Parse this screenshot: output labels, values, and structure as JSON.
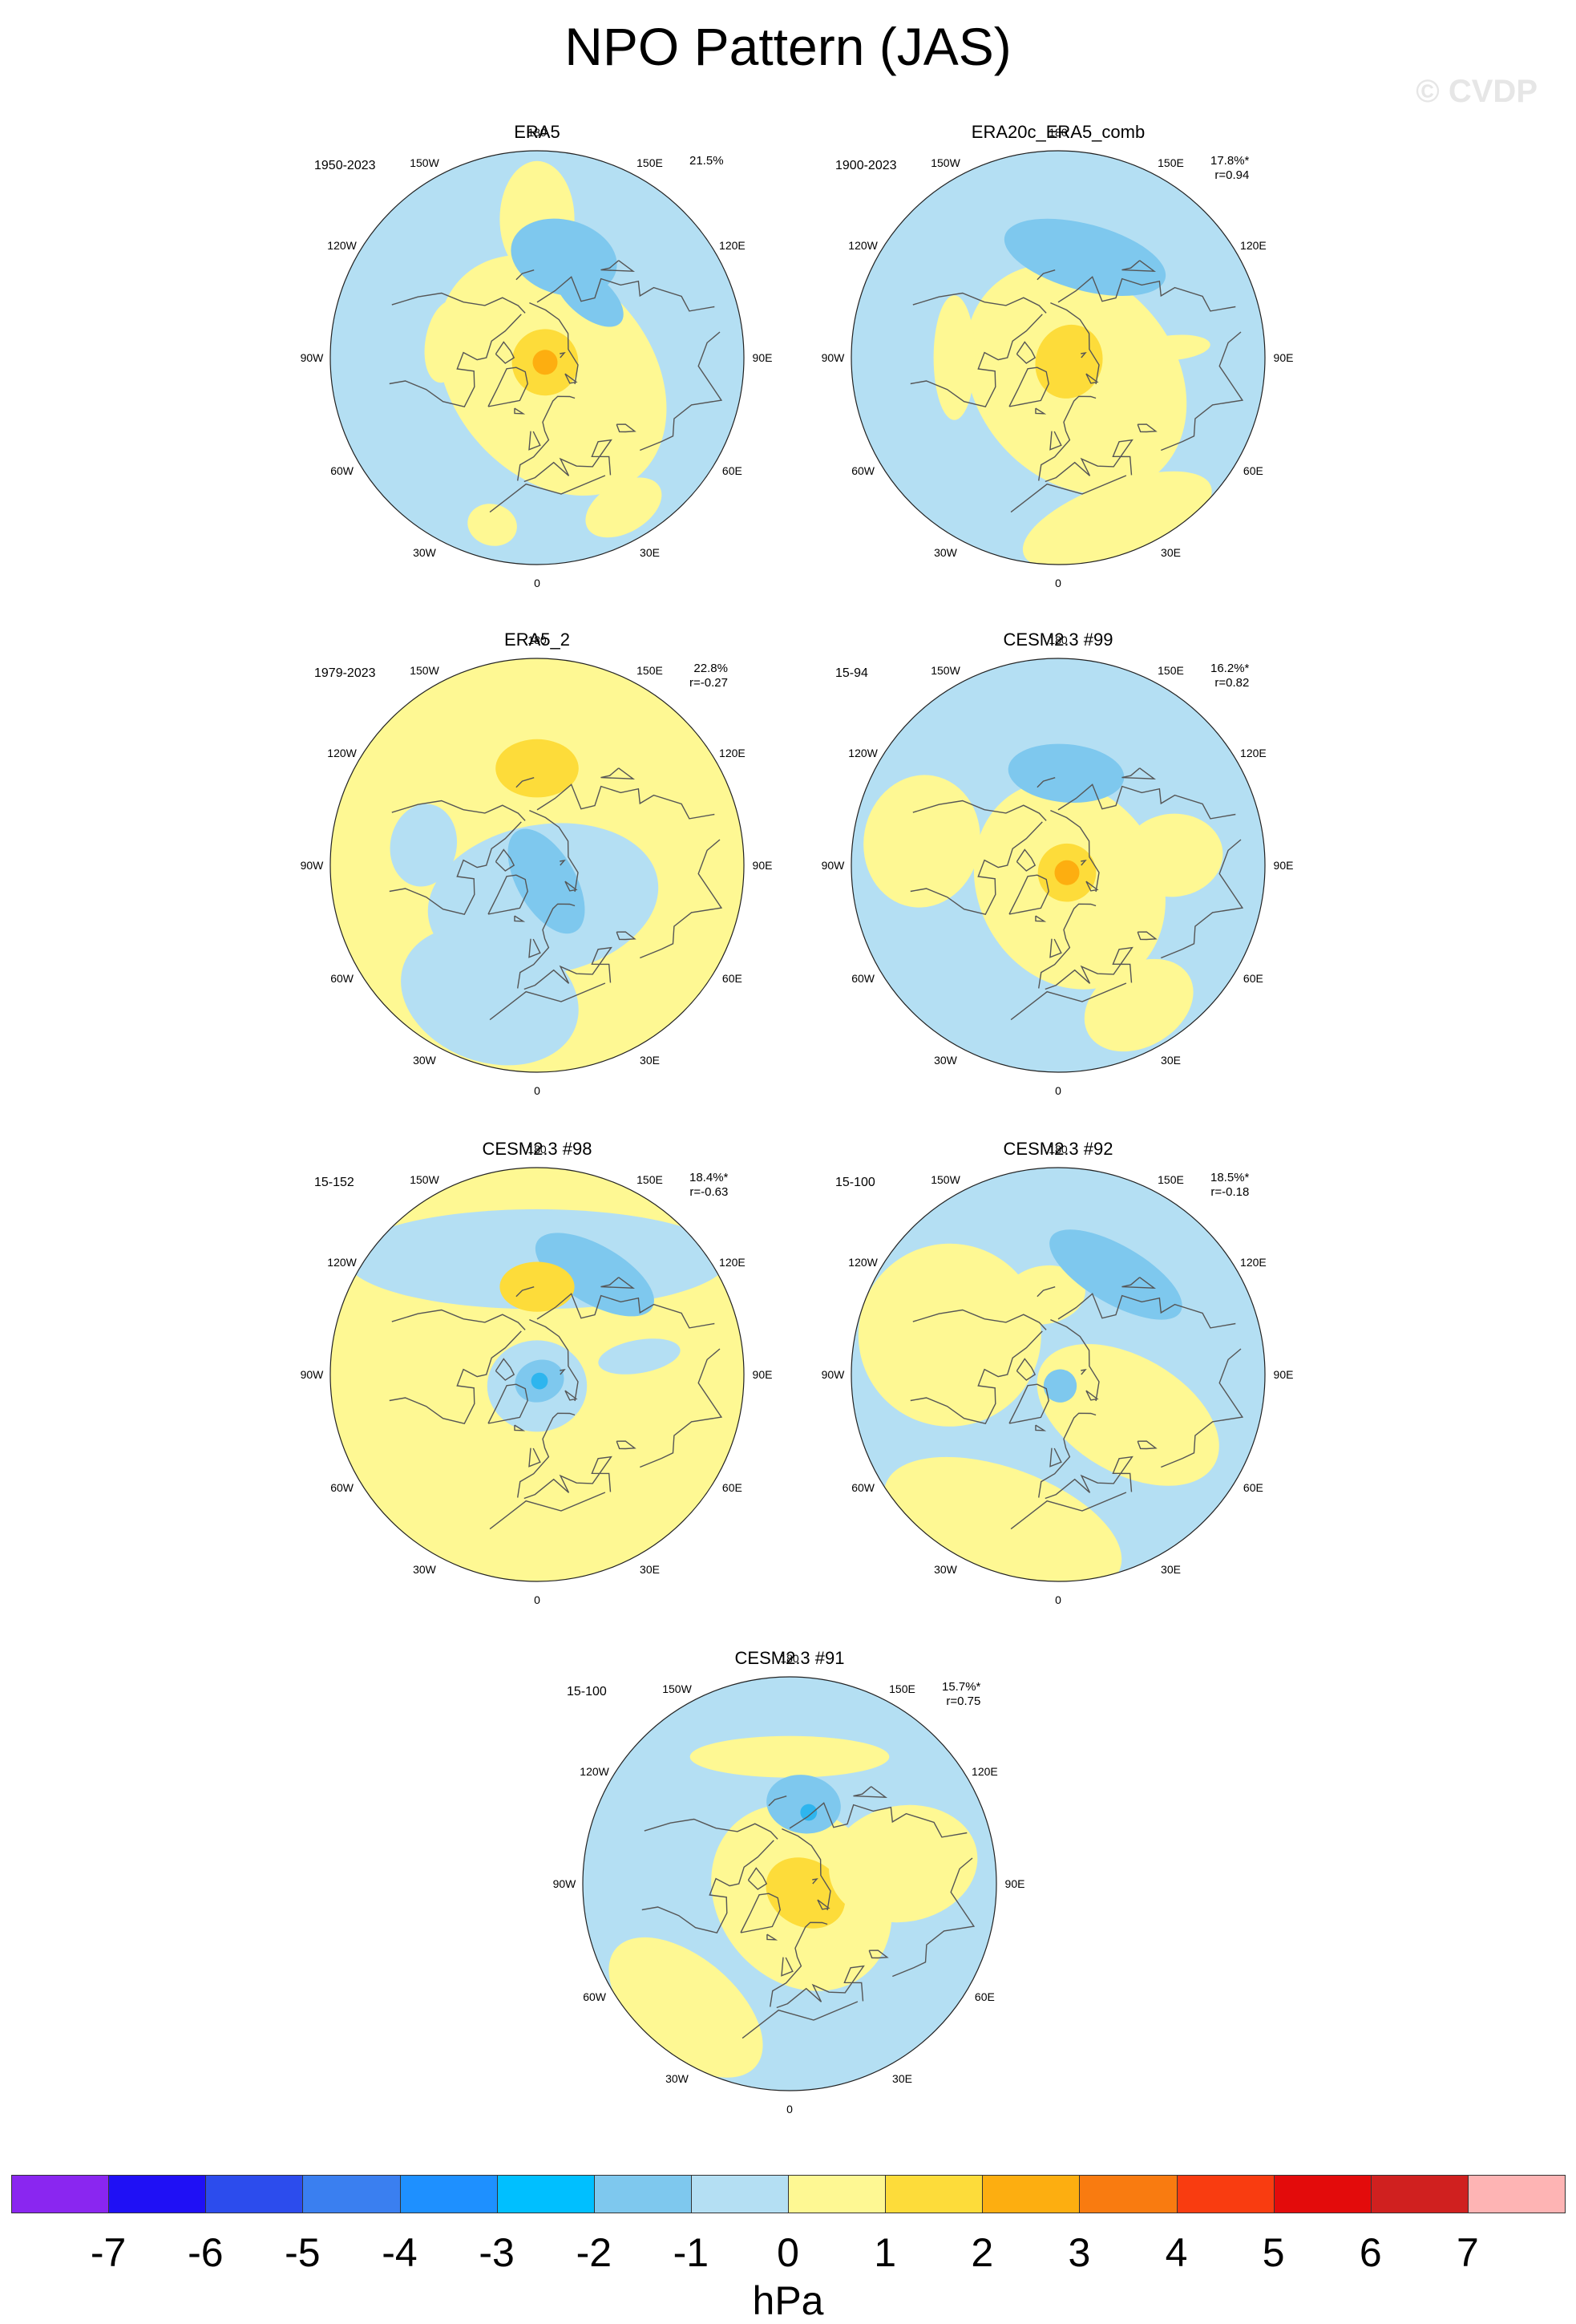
{
  "title": "NPO Pattern (JAS)",
  "watermark": "© CVDP",
  "meridian_labels": [
    "180",
    "150E",
    "120E",
    "90E",
    "60E",
    "30E",
    "0",
    "30W",
    "60W",
    "90W",
    "120W",
    "150W"
  ],
  "colors": {
    "neg_light": "#b4dff3",
    "neg_mid": "#7ec8ee",
    "neg_strong": "#2eb5ee",
    "pos_light": "#fef893",
    "pos_mid": "#fddc3a",
    "pos_strong": "#fdae10",
    "pos_core": "#f97b10",
    "coast": "#555555"
  },
  "panels": [
    {
      "title": "ERA5",
      "period": "1950-2023",
      "pct": "21.5%",
      "r": "",
      "background": "neg",
      "features": [
        {
          "sign": "pos",
          "level": 1,
          "lat": 30,
          "lon": 180,
          "rx": 0.09,
          "ry": 0.14
        },
        {
          "sign": "pos",
          "level": 1,
          "lat": 80,
          "lon": 40,
          "rx": 0.24,
          "ry": 0.32
        },
        {
          "sign": "pos",
          "level": 2,
          "lat": 86,
          "lon": 60,
          "rx": 0.08,
          "ry": 0.08
        },
        {
          "sign": "pos",
          "level": 3,
          "lat": 86,
          "lon": 60,
          "rx": 0.03,
          "ry": 0.03
        },
        {
          "sign": "neg",
          "level": 2,
          "lat": 45,
          "lon": 165,
          "rx": 0.13,
          "ry": 0.09
        },
        {
          "sign": "neg",
          "level": 2,
          "lat": 55,
          "lon": 140,
          "rx": 0.1,
          "ry": 0.05
        },
        {
          "sign": "pos",
          "level": 1,
          "lat": 50,
          "lon": -100,
          "rx": 0.1,
          "ry": 0.05
        },
        {
          "sign": "pos",
          "level": 1,
          "lat": 15,
          "lon": 30,
          "rx": 0.1,
          "ry": 0.06
        },
        {
          "sign": "pos",
          "level": 1,
          "lat": 15,
          "lon": -15,
          "rx": 0.06,
          "ry": 0.05
        }
      ]
    },
    {
      "title": "ERA20c_ERA5_comb",
      "period": "1900-2023",
      "pct": "17.8%*",
      "r": "r=0.94",
      "background": "neg",
      "features": [
        {
          "sign": "pos",
          "level": 1,
          "lat": 78,
          "lon": 40,
          "rx": 0.24,
          "ry": 0.3
        },
        {
          "sign": "pos",
          "level": 2,
          "lat": 85,
          "lon": 70,
          "rx": 0.09,
          "ry": 0.08
        },
        {
          "sign": "neg",
          "level": 2,
          "lat": 45,
          "lon": 165,
          "rx": 0.2,
          "ry": 0.08
        },
        {
          "sign": "pos",
          "level": 1,
          "lat": 45,
          "lon": -90,
          "rx": 0.15,
          "ry": 0.05
        },
        {
          "sign": "pos",
          "level": 1,
          "lat": 15,
          "lon": 20,
          "rx": 0.24,
          "ry": 0.09
        },
        {
          "sign": "pos",
          "level": 1,
          "lat": 40,
          "lon": 95,
          "rx": 0.03,
          "ry": 0.09
        }
      ]
    },
    {
      "title": "ERA5_2",
      "period": "1979-2023",
      "pct": "22.8%",
      "r": "r=-0.27",
      "background": "pos",
      "features": [
        {
          "sign": "pos",
          "level": 2,
          "lat": 48,
          "lon": 180,
          "rx": 0.1,
          "ry": 0.07
        },
        {
          "sign": "neg",
          "level": 1,
          "lat": 75,
          "lon": 10,
          "rx": 0.28,
          "ry": 0.18
        },
        {
          "sign": "neg",
          "level": 2,
          "lat": 82,
          "lon": 30,
          "rx": 0.07,
          "ry": 0.14
        },
        {
          "sign": "neg",
          "level": 1,
          "lat": 30,
          "lon": -20,
          "rx": 0.22,
          "ry": 0.16
        },
        {
          "sign": "neg",
          "level": 1,
          "lat": 40,
          "lon": -100,
          "rx": 0.1,
          "ry": 0.08
        }
      ]
    },
    {
      "title": "CESM2.3 #99",
      "period": "15-94",
      "pct": "16.2%*",
      "r": "r=0.82",
      "background": "neg",
      "features": [
        {
          "sign": "pos",
          "level": 1,
          "lat": 80,
          "lon": 30,
          "rx": 0.22,
          "ry": 0.26
        },
        {
          "sign": "pos",
          "level": 2,
          "lat": 85,
          "lon": 50,
          "rx": 0.07,
          "ry": 0.07
        },
        {
          "sign": "pos",
          "level": 3,
          "lat": 85,
          "lon": 50,
          "rx": 0.03,
          "ry": 0.03
        },
        {
          "sign": "neg",
          "level": 2,
          "lat": 50,
          "lon": 175,
          "rx": 0.14,
          "ry": 0.07
        },
        {
          "sign": "pos",
          "level": 1,
          "lat": 30,
          "lon": -100,
          "rx": 0.16,
          "ry": 0.14
        },
        {
          "sign": "pos",
          "level": 1,
          "lat": 40,
          "lon": 95,
          "rx": 0.1,
          "ry": 0.12
        },
        {
          "sign": "pos",
          "level": 1,
          "lat": 20,
          "lon": 30,
          "rx": 0.14,
          "ry": 0.1
        }
      ]
    },
    {
      "title": "CESM2.3 #98",
      "period": "15-152",
      "pct": "18.4%*",
      "r": "r=-0.63",
      "background": "pos",
      "features": [
        {
          "sign": "neg",
          "level": 1,
          "lat": 40,
          "lon": 180,
          "rx": 0.46,
          "ry": 0.12
        },
        {
          "sign": "neg",
          "level": 2,
          "lat": 40,
          "lon": 150,
          "rx": 0.16,
          "ry": 0.07
        },
        {
          "sign": "pos",
          "level": 2,
          "lat": 52,
          "lon": 180,
          "rx": 0.09,
          "ry": 0.06
        },
        {
          "sign": "neg",
          "level": 1,
          "lat": 85,
          "lon": 0,
          "rx": 0.12,
          "ry": 0.11
        },
        {
          "sign": "neg",
          "level": 2,
          "lat": 87,
          "lon": 20,
          "rx": 0.06,
          "ry": 0.05
        },
        {
          "sign": "neg",
          "level": 3,
          "lat": 87,
          "lon": 20,
          "rx": 0.02,
          "ry": 0.02
        },
        {
          "sign": "neg",
          "level": 1,
          "lat": 45,
          "lon": 100,
          "rx": 0.04,
          "ry": 0.1
        }
      ]
    },
    {
      "title": "CESM2.3 #92",
      "period": "15-100",
      "pct": "18.5%*",
      "r": "r=-0.18",
      "background": "neg",
      "features": [
        {
          "sign": "pos",
          "level": 1,
          "lat": 40,
          "lon": -110,
          "rx": 0.22,
          "ry": 0.22
        },
        {
          "sign": "pos",
          "level": 1,
          "lat": 20,
          "lon": -20,
          "rx": 0.3,
          "ry": 0.14
        },
        {
          "sign": "pos",
          "level": 1,
          "lat": 55,
          "lon": 60,
          "rx": 0.14,
          "ry": 0.24
        },
        {
          "sign": "pos",
          "level": 1,
          "lat": 55,
          "lon": -170,
          "rx": 0.1,
          "ry": 0.07
        },
        {
          "sign": "neg",
          "level": 2,
          "lat": 40,
          "lon": 150,
          "rx": 0.18,
          "ry": 0.07
        },
        {
          "sign": "neg",
          "level": 2,
          "lat": 85,
          "lon": 10,
          "rx": 0.04,
          "ry": 0.04
        }
      ]
    },
    {
      "title": "CESM2.3 #91",
      "period": "15-100",
      "pct": "15.7%*",
      "r": "r=0.75",
      "background": "neg",
      "features": [
        {
          "sign": "pos",
          "level": 1,
          "lat": 35,
          "lon": 180,
          "rx": 0.24,
          "ry": 0.05
        },
        {
          "sign": "pos",
          "level": 1,
          "lat": 82,
          "lon": 40,
          "rx": 0.2,
          "ry": 0.24
        },
        {
          "sign": "pos",
          "level": 2,
          "lat": 82,
          "lon": 60,
          "rx": 0.08,
          "ry": 0.1
        },
        {
          "sign": "neg",
          "level": 2,
          "lat": 55,
          "lon": 170,
          "rx": 0.09,
          "ry": 0.07
        },
        {
          "sign": "neg",
          "level": 3,
          "lat": 58,
          "lon": 165,
          "rx": 0.02,
          "ry": 0.02
        },
        {
          "sign": "pos",
          "level": 1,
          "lat": 40,
          "lon": 100,
          "rx": 0.14,
          "ry": 0.18
        },
        {
          "sign": "pos",
          "level": 1,
          "lat": 20,
          "lon": -40,
          "rx": 0.22,
          "ry": 0.12
        }
      ]
    }
  ],
  "colorbar": {
    "unit": "hPa",
    "ticks": [
      "-7",
      "-6",
      "-5",
      "-4",
      "-3",
      "-2",
      "-1",
      "0",
      "1",
      "2",
      "3",
      "4",
      "5",
      "6",
      "7"
    ],
    "colors": [
      "#8a26f0",
      "#1f10f5",
      "#2c4ced",
      "#3a7ff0",
      "#1e90ff",
      "#00bfff",
      "#7ec8ee",
      "#b4dff3",
      "#fef893",
      "#fddc3a",
      "#fdae10",
      "#f97b10",
      "#f93c10",
      "#e30b0b",
      "#d0201f",
      "#feb4b4"
    ]
  }
}
